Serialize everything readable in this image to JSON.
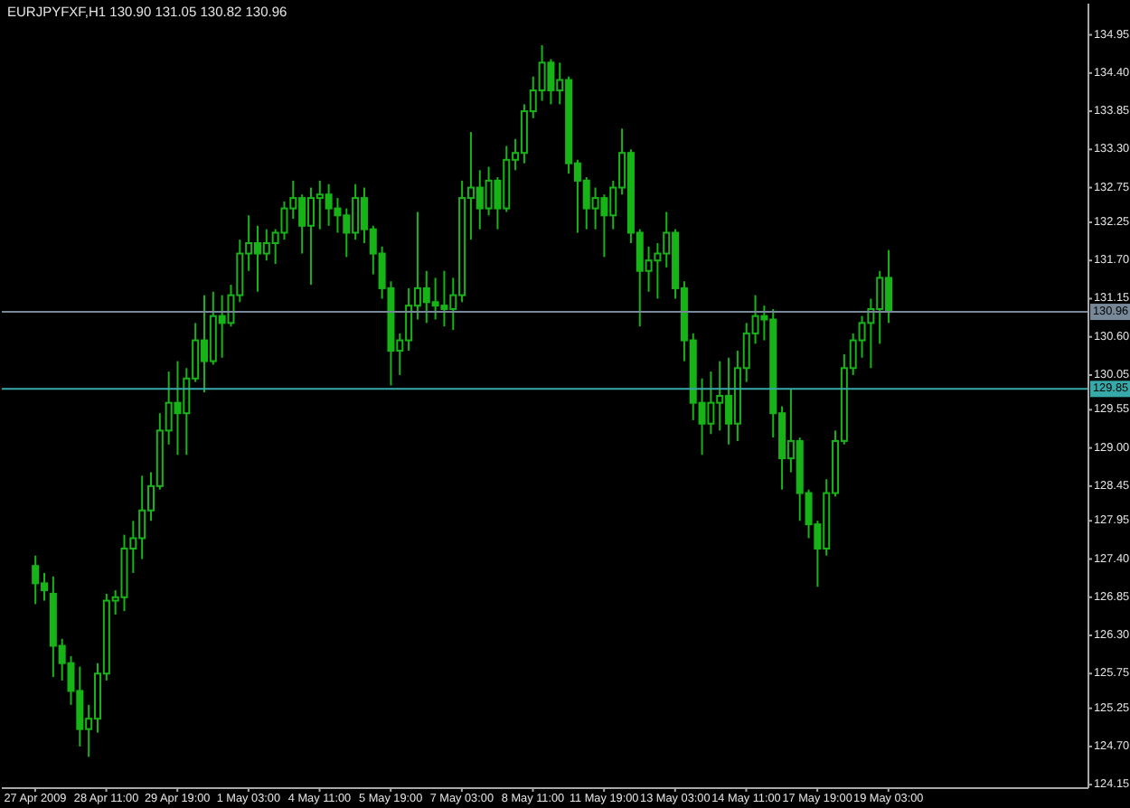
{
  "chart_data": {
    "type": "candlestick",
    "title": "EURJPYFXF,H1 130.90 131.05 130.82 130.96",
    "color": "#17b417",
    "categories": [
      "27 Apr 2009",
      null,
      null,
      null,
      null,
      null,
      null,
      null,
      "28 Apr 11:00",
      null,
      null,
      null,
      null,
      null,
      null,
      null,
      "29 Apr 19:00",
      null,
      null,
      null,
      null,
      null,
      null,
      null,
      "1 May 03:00",
      null,
      null,
      null,
      null,
      null,
      null,
      null,
      "4 May 11:00",
      null,
      null,
      null,
      null,
      null,
      null,
      null,
      "5 May 19:00",
      null,
      null,
      null,
      null,
      null,
      null,
      null,
      "7 May 03:00",
      null,
      null,
      null,
      null,
      null,
      null,
      null,
      "8 May 11:00",
      null,
      null,
      null,
      null,
      null,
      null,
      null,
      "11 May 19:00",
      null,
      null,
      null,
      null,
      null,
      null,
      null,
      "13 May 03:00",
      null,
      null,
      null,
      null,
      null,
      null,
      null,
      "14 May 11:00",
      null,
      null,
      null,
      null,
      null,
      null,
      null,
      "17 May 19:00",
      null,
      null,
      null,
      null,
      null,
      null,
      null,
      "19 May 03:00",
      null,
      null,
      null,
      null,
      null,
      null,
      null,
      null,
      null,
      null,
      null,
      null,
      null,
      null,
      null,
      null,
      null,
      null,
      null,
      null,
      null,
      null
    ],
    "ohlc": [
      [
        127.3,
        127.45,
        126.75,
        127.05
      ],
      [
        127.05,
        127.2,
        126.8,
        126.95
      ],
      [
        126.9,
        127.15,
        125.7,
        126.15
      ],
      [
        126.15,
        126.25,
        125.65,
        125.9
      ],
      [
        125.9,
        126.0,
        125.3,
        125.5
      ],
      [
        125.5,
        125.85,
        124.7,
        124.95
      ],
      [
        124.95,
        125.3,
        124.55,
        125.1
      ],
      [
        125.1,
        125.9,
        124.9,
        125.75
      ],
      [
        125.75,
        126.9,
        125.65,
        126.8
      ],
      [
        126.8,
        126.95,
        126.6,
        126.85
      ],
      [
        126.85,
        127.75,
        126.65,
        127.55
      ],
      [
        127.55,
        127.95,
        127.2,
        127.7
      ],
      [
        127.7,
        128.6,
        127.4,
        128.1
      ],
      [
        128.1,
        128.65,
        127.95,
        128.45
      ],
      [
        128.45,
        129.5,
        128.4,
        129.25
      ],
      [
        129.25,
        130.1,
        129.05,
        129.65
      ],
      [
        129.65,
        130.25,
        128.9,
        129.5
      ],
      [
        129.5,
        130.15,
        128.9,
        130.0
      ],
      [
        130.0,
        130.8,
        129.95,
        130.55
      ],
      [
        130.55,
        131.2,
        129.8,
        130.25
      ],
      [
        130.25,
        131.25,
        130.2,
        130.9
      ],
      [
        130.9,
        131.2,
        130.3,
        130.8
      ],
      [
        130.8,
        131.35,
        130.75,
        131.2
      ],
      [
        131.2,
        132.0,
        131.1,
        131.8
      ],
      [
        131.8,
        132.35,
        131.55,
        131.95
      ],
      [
        131.95,
        132.2,
        131.25,
        131.8
      ],
      [
        131.8,
        132.15,
        131.7,
        131.95
      ],
      [
        131.95,
        132.15,
        131.65,
        132.1
      ],
      [
        132.1,
        132.55,
        132.0,
        132.45
      ],
      [
        132.45,
        132.85,
        132.3,
        132.6
      ],
      [
        132.6,
        132.65,
        131.8,
        132.2
      ],
      [
        132.2,
        132.75,
        131.35,
        132.6
      ],
      [
        132.6,
        132.85,
        132.15,
        132.65
      ],
      [
        132.65,
        132.8,
        132.2,
        132.45
      ],
      [
        132.45,
        132.6,
        132.1,
        132.35
      ],
      [
        132.35,
        132.45,
        131.75,
        132.1
      ],
      [
        132.1,
        132.8,
        132.0,
        132.6
      ],
      [
        132.6,
        132.75,
        131.95,
        132.15
      ],
      [
        132.15,
        132.2,
        131.5,
        131.8
      ],
      [
        131.8,
        131.9,
        131.15,
        131.3
      ],
      [
        131.3,
        131.4,
        129.9,
        130.4
      ],
      [
        130.4,
        130.65,
        130.05,
        130.55
      ],
      [
        130.55,
        131.3,
        130.4,
        131.05
      ],
      [
        131.05,
        132.4,
        130.85,
        131.3
      ],
      [
        131.3,
        131.55,
        130.8,
        131.1
      ],
      [
        131.1,
        131.45,
        130.85,
        131.05
      ],
      [
        131.05,
        131.55,
        130.75,
        131.0
      ],
      [
        131.0,
        131.45,
        130.7,
        131.2
      ],
      [
        131.2,
        132.85,
        131.1,
        132.6
      ],
      [
        132.6,
        133.55,
        132.0,
        132.75
      ],
      [
        132.75,
        133.0,
        132.15,
        132.45
      ],
      [
        132.45,
        133.05,
        132.35,
        132.85
      ],
      [
        132.85,
        132.9,
        132.15,
        132.45
      ],
      [
        132.45,
        133.35,
        132.4,
        133.15
      ],
      [
        133.15,
        133.45,
        133.0,
        133.25
      ],
      [
        133.25,
        133.95,
        133.1,
        133.85
      ],
      [
        133.85,
        134.35,
        133.75,
        134.15
      ],
      [
        134.15,
        134.8,
        134.0,
        134.55
      ],
      [
        134.55,
        134.6,
        133.95,
        134.15
      ],
      [
        134.15,
        134.55,
        133.95,
        134.3
      ],
      [
        134.3,
        134.35,
        132.95,
        133.1
      ],
      [
        133.1,
        133.15,
        132.1,
        132.85
      ],
      [
        132.85,
        132.9,
        132.15,
        132.45
      ],
      [
        132.45,
        132.75,
        132.15,
        132.6
      ],
      [
        132.6,
        132.65,
        131.75,
        132.35
      ],
      [
        132.35,
        132.85,
        132.15,
        132.75
      ],
      [
        132.75,
        133.6,
        132.65,
        133.25
      ],
      [
        133.25,
        133.3,
        131.95,
        132.1
      ],
      [
        132.1,
        132.15,
        130.75,
        131.55
      ],
      [
        131.55,
        131.9,
        131.25,
        131.7
      ],
      [
        131.7,
        131.95,
        131.15,
        131.8
      ],
      [
        131.8,
        132.4,
        131.6,
        132.1
      ],
      [
        132.1,
        132.15,
        131.15,
        131.3
      ],
      [
        131.3,
        131.4,
        130.25,
        130.55
      ],
      [
        130.55,
        130.65,
        129.4,
        129.65
      ],
      [
        129.65,
        130.0,
        128.9,
        129.35
      ],
      [
        129.35,
        130.1,
        129.2,
        129.65
      ],
      [
        129.65,
        130.25,
        129.25,
        129.75
      ],
      [
        129.75,
        130.3,
        129.05,
        129.35
      ],
      [
        129.35,
        130.4,
        129.1,
        130.15
      ],
      [
        130.15,
        130.8,
        129.95,
        130.65
      ],
      [
        130.65,
        131.2,
        130.5,
        130.9
      ],
      [
        130.9,
        131.05,
        130.55,
        130.85
      ],
      [
        130.85,
        131.0,
        129.15,
        129.5
      ],
      [
        129.5,
        129.6,
        128.4,
        128.85
      ],
      [
        128.85,
        129.85,
        128.65,
        129.1
      ],
      [
        129.1,
        129.15,
        127.95,
        128.35
      ],
      [
        128.35,
        128.4,
        127.7,
        127.9
      ],
      [
        127.9,
        127.95,
        127.0,
        127.55
      ],
      [
        127.55,
        128.55,
        127.45,
        128.35
      ],
      [
        128.35,
        129.25,
        128.3,
        129.1
      ],
      [
        129.1,
        130.35,
        129.05,
        130.15
      ],
      [
        130.15,
        130.65,
        130.05,
        130.55
      ],
      [
        130.55,
        130.9,
        130.3,
        130.8
      ],
      [
        130.8,
        131.15,
        130.15,
        131.0
      ],
      [
        131.0,
        131.55,
        130.5,
        131.45
      ],
      [
        131.45,
        131.85,
        130.8,
        130.96
      ],
      null,
      null,
      null,
      null,
      null,
      null,
      null,
      null,
      null,
      null,
      null,
      null,
      null,
      null,
      null,
      null,
      null,
      null,
      null,
      null,
      null,
      null
    ],
    "ylim": [
      124.1,
      135.4
    ],
    "yticks": [
      124.15,
      {
        "value": 124.7,
        "label": "124.70"
      },
      125.25,
      125.75,
      {
        "value": 126.3,
        "label": "126.30"
      },
      126.85,
      {
        "value": 127.4,
        "label": "127.40"
      },
      127.95,
      128.45,
      {
        "value": 129,
        "label": "129.00"
      },
      129.55,
      130.05,
      {
        "value": 130.6,
        "label": "130.60"
      },
      131.15,
      {
        "value": 131.7,
        "label": "131.70"
      },
      132.25,
      132.75,
      {
        "value": 133.3,
        "label": "133.30"
      },
      133.85,
      {
        "value": 134.4,
        "label": "134.40"
      },
      134.95
    ],
    "ref_lines": [
      {
        "axis": "y",
        "value": 130.96,
        "label": "130.96",
        "color": "#778899"
      },
      {
        "axis": "y",
        "value": 129.85,
        "label": "129.85",
        "color": "#37a9a9"
      }
    ]
  }
}
